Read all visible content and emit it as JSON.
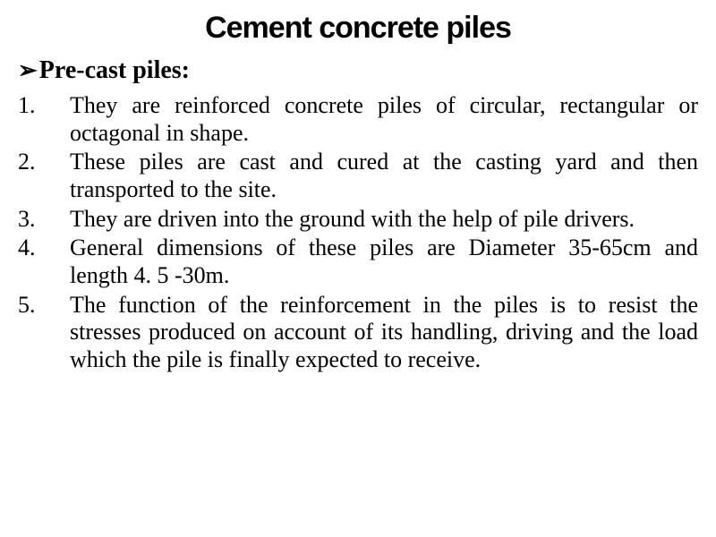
{
  "title": "Cement concrete piles",
  "subtitle": "Pre-cast piles:",
  "bullet_glyph": "➢",
  "items": [
    {
      "number": "1.",
      "text": "They are reinforced concrete piles of circular, rectangular or octagonal in shape."
    },
    {
      "number": "2.",
      "text": "These piles are cast and cured at the casting yard and then transported to the site."
    },
    {
      "number": "3.",
      "text": "They are driven into the ground with the help of pile drivers."
    },
    {
      "number": "4.",
      "text": "General dimensions of these piles are Diameter 35-65cm and length 4. 5 -30m."
    },
    {
      "number": "5.",
      "text": "The function of the reinforcement in the piles is to resist the stresses produced on account of its handling, driving and the load which the pile is finally expected to receive."
    }
  ],
  "colors": {
    "background": "#ffffff",
    "text": "#000000"
  },
  "typography": {
    "title_fontsize": 34,
    "subtitle_fontsize": 28,
    "body_fontsize": 26,
    "title_family": "Comic Sans MS",
    "body_family": "Times New Roman"
  }
}
